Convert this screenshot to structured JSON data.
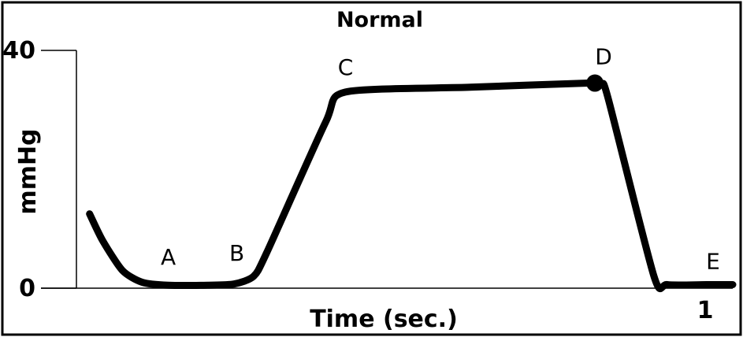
{
  "chart_data": {
    "type": "line",
    "title": "Normal",
    "xlabel": "Time (sec.)",
    "ylabel": "mmHg",
    "ylim": [
      0,
      40
    ],
    "xlim": [
      0,
      1
    ],
    "y_ticks": [
      {
        "value": 0,
        "label": "0"
      },
      {
        "value": 40,
        "label": "40"
      }
    ],
    "x_tick_labels": [
      {
        "value": 1,
        "label": "1"
      }
    ],
    "grid": false,
    "series": [
      {
        "values_x": [
          0.02,
          0.04,
          0.07,
          0.1,
          0.14,
          0.2,
          0.24,
          0.27,
          0.29,
          0.38,
          0.41,
          0.6,
          0.78,
          0.8,
          0.81,
          0.88,
          0.9,
          0.96,
          1.0
        ],
        "values_y": [
          12.5,
          8.0,
          3.0,
          1.0,
          0.5,
          0.5,
          0.7,
          2.0,
          6.0,
          28.0,
          33.0,
          33.8,
          34.5,
          34.2,
          32.0,
          2.0,
          0.6,
          0.6,
          0.6
        ]
      }
    ],
    "annotations": [
      {
        "label": "A",
        "x": 0.14,
        "y": 0.5
      },
      {
        "label": "B",
        "x": 0.26,
        "y": 1.2
      },
      {
        "label": "C",
        "x": 0.41,
        "y": 33.0
      },
      {
        "label": "D",
        "x": 0.79,
        "y": 34.5
      },
      {
        "label": "E",
        "x": 0.97,
        "y": 0.6
      }
    ],
    "markers": [
      {
        "label": "D",
        "x": 0.79,
        "y": 34.5
      }
    ]
  }
}
